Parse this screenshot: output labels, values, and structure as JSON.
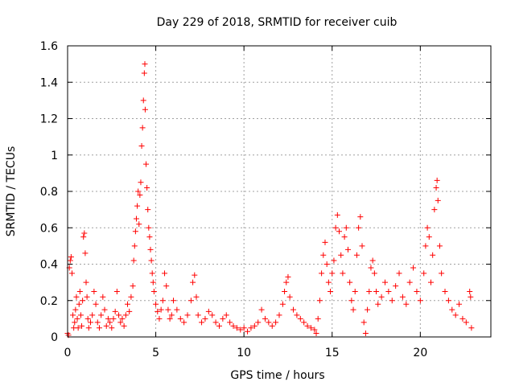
{
  "chart_data": {
    "type": "scatter",
    "title": "Day 229 of 2018, SRMTID for receiver cuib",
    "xlabel": "GPS time / hours",
    "ylabel": "SRMTID / TECUs",
    "xlim": [
      0,
      24
    ],
    "ylim": [
      0,
      1.6
    ],
    "xticks": [
      0,
      5,
      10,
      15,
      20
    ],
    "xtick_labels": [
      "0",
      "5",
      "10",
      "15",
      "20"
    ],
    "yticks": [
      0,
      0.2,
      0.4,
      0.6,
      0.8,
      1.0,
      1.2,
      1.4,
      1.6
    ],
    "ytick_labels": [
      "0",
      "0.2",
      "0.4",
      "0.6",
      "0.8",
      "1",
      "1.2",
      "1.4",
      "1.6"
    ],
    "grid": true,
    "marker": "+",
    "series": [
      {
        "name": "SRMTID",
        "color": "#ff0000",
        "points": [
          [
            0.0,
            0.02
          ],
          [
            0.05,
            0.01
          ],
          [
            0.1,
            0.38
          ],
          [
            0.15,
            0.42
          ],
          [
            0.2,
            0.44
          ],
          [
            0.25,
            0.35
          ],
          [
            0.3,
            0.12
          ],
          [
            0.35,
            0.05
          ],
          [
            0.4,
            0.08
          ],
          [
            0.45,
            0.15
          ],
          [
            0.5,
            0.22
          ],
          [
            0.55,
            0.1
          ],
          [
            0.6,
            0.05
          ],
          [
            0.65,
            0.18
          ],
          [
            0.7,
            0.25
          ],
          [
            0.75,
            0.12
          ],
          [
            0.8,
            0.06
          ],
          [
            0.85,
            0.2
          ],
          [
            0.9,
            0.55
          ],
          [
            0.95,
            0.57
          ],
          [
            1.0,
            0.46
          ],
          [
            1.05,
            0.3
          ],
          [
            1.1,
            0.22
          ],
          [
            1.15,
            0.1
          ],
          [
            1.2,
            0.05
          ],
          [
            1.3,
            0.08
          ],
          [
            1.4,
            0.12
          ],
          [
            1.5,
            0.25
          ],
          [
            1.6,
            0.18
          ],
          [
            1.7,
            0.08
          ],
          [
            1.8,
            0.05
          ],
          [
            1.9,
            0.12
          ],
          [
            2.0,
            0.22
          ],
          [
            2.1,
            0.15
          ],
          [
            2.2,
            0.06
          ],
          [
            2.3,
            0.1
          ],
          [
            2.4,
            0.08
          ],
          [
            2.5,
            0.05
          ],
          [
            2.6,
            0.1
          ],
          [
            2.7,
            0.14
          ],
          [
            2.8,
            0.25
          ],
          [
            2.9,
            0.12
          ],
          [
            3.0,
            0.08
          ],
          [
            3.1,
            0.1
          ],
          [
            3.2,
            0.06
          ],
          [
            3.3,
            0.12
          ],
          [
            3.4,
            0.18
          ],
          [
            3.5,
            0.14
          ],
          [
            3.6,
            0.22
          ],
          [
            3.7,
            0.28
          ],
          [
            3.75,
            0.42
          ],
          [
            3.8,
            0.5
          ],
          [
            3.85,
            0.58
          ],
          [
            3.9,
            0.65
          ],
          [
            3.95,
            0.72
          ],
          [
            4.0,
            0.8
          ],
          [
            4.05,
            0.62
          ],
          [
            4.1,
            0.78
          ],
          [
            4.15,
            0.85
          ],
          [
            4.2,
            1.05
          ],
          [
            4.25,
            1.15
          ],
          [
            4.3,
            1.3
          ],
          [
            4.35,
            1.45
          ],
          [
            4.38,
            1.5
          ],
          [
            4.4,
            1.25
          ],
          [
            4.45,
            0.95
          ],
          [
            4.5,
            0.82
          ],
          [
            4.55,
            0.7
          ],
          [
            4.6,
            0.6
          ],
          [
            4.65,
            0.55
          ],
          [
            4.7,
            0.48
          ],
          [
            4.75,
            0.42
          ],
          [
            4.8,
            0.35
          ],
          [
            4.85,
            0.3
          ],
          [
            4.9,
            0.25
          ],
          [
            5.0,
            0.18
          ],
          [
            5.1,
            0.14
          ],
          [
            5.2,
            0.1
          ],
          [
            5.3,
            0.15
          ],
          [
            5.4,
            0.2
          ],
          [
            5.5,
            0.35
          ],
          [
            5.6,
            0.28
          ],
          [
            5.7,
            0.15
          ],
          [
            5.8,
            0.1
          ],
          [
            5.9,
            0.12
          ],
          [
            6.0,
            0.2
          ],
          [
            6.2,
            0.15
          ],
          [
            6.4,
            0.1
          ],
          [
            6.6,
            0.08
          ],
          [
            6.8,
            0.12
          ],
          [
            7.0,
            0.2
          ],
          [
            7.1,
            0.3
          ],
          [
            7.2,
            0.34
          ],
          [
            7.3,
            0.22
          ],
          [
            7.4,
            0.12
          ],
          [
            7.6,
            0.08
          ],
          [
            7.8,
            0.1
          ],
          [
            8.0,
            0.14
          ],
          [
            8.2,
            0.12
          ],
          [
            8.4,
            0.08
          ],
          [
            8.6,
            0.06
          ],
          [
            8.8,
            0.1
          ],
          [
            9.0,
            0.12
          ],
          [
            9.2,
            0.08
          ],
          [
            9.4,
            0.06
          ],
          [
            9.6,
            0.05
          ],
          [
            9.8,
            0.04
          ],
          [
            10.0,
            0.05
          ],
          [
            10.2,
            0.03
          ],
          [
            10.4,
            0.05
          ],
          [
            10.6,
            0.06
          ],
          [
            10.8,
            0.08
          ],
          [
            11.0,
            0.15
          ],
          [
            11.2,
            0.1
          ],
          [
            11.4,
            0.08
          ],
          [
            11.6,
            0.06
          ],
          [
            11.8,
            0.08
          ],
          [
            12.0,
            0.12
          ],
          [
            12.2,
            0.18
          ],
          [
            12.3,
            0.25
          ],
          [
            12.4,
            0.3
          ],
          [
            12.5,
            0.33
          ],
          [
            12.6,
            0.22
          ],
          [
            12.8,
            0.15
          ],
          [
            13.0,
            0.12
          ],
          [
            13.2,
            0.1
          ],
          [
            13.4,
            0.08
          ],
          [
            13.6,
            0.06
          ],
          [
            13.8,
            0.05
          ],
          [
            14.0,
            0.04
          ],
          [
            14.1,
            0.02
          ],
          [
            14.2,
            0.1
          ],
          [
            14.3,
            0.2
          ],
          [
            14.4,
            0.35
          ],
          [
            14.5,
            0.45
          ],
          [
            14.6,
            0.52
          ],
          [
            14.7,
            0.4
          ],
          [
            14.8,
            0.3
          ],
          [
            14.9,
            0.25
          ],
          [
            15.0,
            0.35
          ],
          [
            15.1,
            0.42
          ],
          [
            15.2,
            0.6
          ],
          [
            15.3,
            0.67
          ],
          [
            15.4,
            0.58
          ],
          [
            15.5,
            0.45
          ],
          [
            15.6,
            0.35
          ],
          [
            15.7,
            0.55
          ],
          [
            15.8,
            0.6
          ],
          [
            15.9,
            0.48
          ],
          [
            16.0,
            0.3
          ],
          [
            16.1,
            0.2
          ],
          [
            16.2,
            0.15
          ],
          [
            16.3,
            0.25
          ],
          [
            16.4,
            0.45
          ],
          [
            16.5,
            0.6
          ],
          [
            16.6,
            0.66
          ],
          [
            16.7,
            0.5
          ],
          [
            16.8,
            0.08
          ],
          [
            16.9,
            0.02
          ],
          [
            17.0,
            0.15
          ],
          [
            17.1,
            0.25
          ],
          [
            17.2,
            0.38
          ],
          [
            17.3,
            0.42
          ],
          [
            17.4,
            0.35
          ],
          [
            17.5,
            0.25
          ],
          [
            17.6,
            0.18
          ],
          [
            17.8,
            0.22
          ],
          [
            18.0,
            0.3
          ],
          [
            18.2,
            0.25
          ],
          [
            18.4,
            0.2
          ],
          [
            18.6,
            0.28
          ],
          [
            18.8,
            0.35
          ],
          [
            19.0,
            0.22
          ],
          [
            19.2,
            0.18
          ],
          [
            19.4,
            0.3
          ],
          [
            19.6,
            0.38
          ],
          [
            19.8,
            0.25
          ],
          [
            20.0,
            0.2
          ],
          [
            20.2,
            0.35
          ],
          [
            20.3,
            0.5
          ],
          [
            20.4,
            0.6
          ],
          [
            20.5,
            0.55
          ],
          [
            20.6,
            0.3
          ],
          [
            20.7,
            0.45
          ],
          [
            20.8,
            0.7
          ],
          [
            20.9,
            0.82
          ],
          [
            20.95,
            0.86
          ],
          [
            21.0,
            0.75
          ],
          [
            21.1,
            0.5
          ],
          [
            21.2,
            0.35
          ],
          [
            21.4,
            0.25
          ],
          [
            21.6,
            0.2
          ],
          [
            21.8,
            0.15
          ],
          [
            22.0,
            0.12
          ],
          [
            22.2,
            0.18
          ],
          [
            22.4,
            0.1
          ],
          [
            22.6,
            0.08
          ],
          [
            22.8,
            0.25
          ],
          [
            22.85,
            0.22
          ],
          [
            22.9,
            0.05
          ]
        ]
      }
    ]
  }
}
